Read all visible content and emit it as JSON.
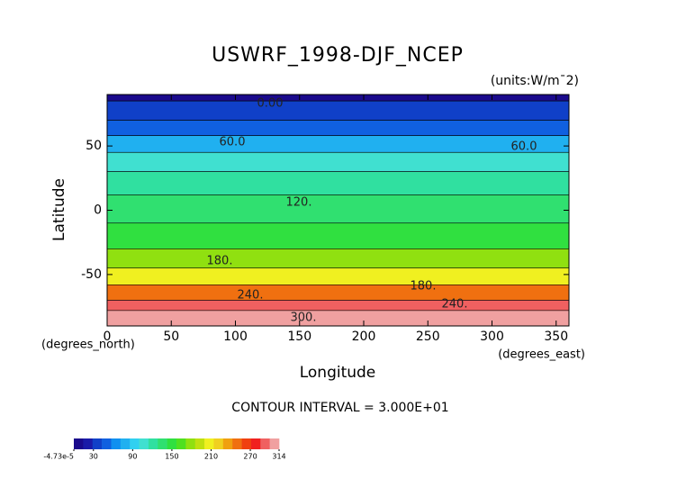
{
  "chart_data": {
    "type": "contour",
    "title": "USWRF_1998-DJF_NCEP",
    "units": "(units:W/m¯2)",
    "x_label": "Longitude",
    "x_unit": "(degrees_east)",
    "y_label": "Latitude",
    "y_unit": "(degrees_north)",
    "xlim": [
      0,
      360
    ],
    "xticks": [
      0,
      50,
      100,
      150,
      200,
      250,
      300,
      350
    ],
    "ylim": [
      -90,
      90
    ],
    "yticks": [
      -50,
      0,
      50
    ],
    "lat_edges": [
      90,
      85,
      70,
      58,
      45,
      30,
      12,
      -10,
      -30,
      -45,
      -58,
      -70,
      -78,
      -90
    ],
    "band_values": [
      0,
      35,
      55,
      75,
      100,
      120,
      140,
      155,
      175,
      210,
      250,
      290,
      314
    ],
    "contour_labels": [
      "0.00",
      "60.0",
      "60.0",
      "120.",
      "180.",
      "180.",
      "240.",
      "240.",
      "300."
    ],
    "annotation": "CONTOUR INTERVAL = 3.000E+01",
    "colorbar": {
      "lim": [
        -4.73e-05,
        314
      ],
      "ticks": [
        {
          "value": -4.73e-05,
          "label": "-4.73e-5"
        },
        30,
        90,
        150,
        210,
        270,
        314
      ],
      "colors": [
        "#1a0a8c",
        "#1a1aa8",
        "#1040c8",
        "#1060e0",
        "#1090f0",
        "#20b0f0",
        "#30d0f0",
        "#40e0d0",
        "#30e0a0",
        "#30e070",
        "#30e040",
        "#50e020",
        "#90e010",
        "#c0e010",
        "#f0f020",
        "#f0d020",
        "#f0a010",
        "#f07010",
        "#f04010",
        "#f02020",
        "#f06060",
        "#f0a0a0"
      ]
    }
  }
}
